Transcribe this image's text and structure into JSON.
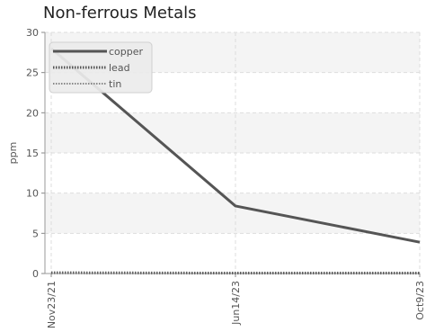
{
  "chart_data": {
    "type": "line",
    "title": "Non-ferrous Metals",
    "xlabel": "",
    "ylabel": "ppm",
    "ylim": [
      0,
      30
    ],
    "yticks": [
      0,
      5,
      10,
      15,
      20,
      25,
      30
    ],
    "x": [
      "Nov23/21",
      "Jun14/23",
      "Oct9/23"
    ],
    "series": [
      {
        "name": "copper",
        "values": [
          28,
          8.4,
          3.9
        ],
        "color": "#555555",
        "style": "solid"
      },
      {
        "name": "lead",
        "values": [
          0.1,
          0.05,
          0.05
        ],
        "color": "#555555",
        "style": "dotted-thick"
      },
      {
        "name": "tin",
        "values": [
          0.1,
          0.05,
          0.05
        ],
        "color": "#666666",
        "style": "dotted"
      }
    ],
    "grid": true,
    "legend_position": "top-left"
  }
}
